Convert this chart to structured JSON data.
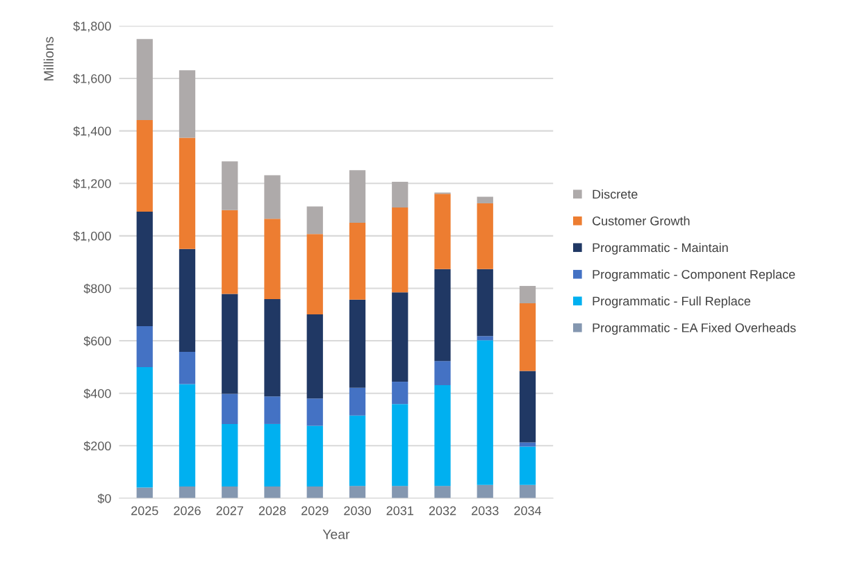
{
  "chart_data": {
    "type": "bar",
    "stacked": true,
    "xlabel": "Year",
    "ylabel": "Millions",
    "categories": [
      "2025",
      "2026",
      "2027",
      "2028",
      "2029",
      "2030",
      "2031",
      "2032",
      "2033",
      "2034"
    ],
    "series": [
      {
        "name": "Programmatic - EA Fixed Overheads",
        "color": "#8497b0",
        "values": [
          41,
          45,
          45,
          45,
          45,
          47,
          47,
          47,
          51,
          51
        ]
      },
      {
        "name": "Programmatic - Full Replace",
        "color": "#00b0f0",
        "values": [
          459,
          390,
          238,
          238,
          231,
          268,
          312,
          384,
          551,
          146
        ]
      },
      {
        "name": "Programmatic - Component Replace",
        "color": "#4472c4",
        "values": [
          156,
          123,
          115,
          105,
          104,
          106,
          85,
          92,
          16,
          16
        ]
      },
      {
        "name": "Programmatic - Maintain",
        "color": "#203864",
        "values": [
          436,
          392,
          381,
          371,
          321,
          336,
          341,
          350,
          255,
          272
        ]
      },
      {
        "name": "Customer Growth",
        "color": "#ed7d31",
        "values": [
          349,
          424,
          319,
          306,
          306,
          293,
          323,
          287,
          251,
          258
        ]
      },
      {
        "name": "Discrete",
        "color": "#aeaaaa",
        "values": [
          309,
          257,
          186,
          166,
          105,
          200,
          98,
          5,
          25,
          66
        ]
      }
    ],
    "ylim": [
      0,
      1800
    ],
    "yticks": [
      {
        "value": 0,
        "label": "$0"
      },
      {
        "value": 200,
        "label": "$200"
      },
      {
        "value": 400,
        "label": "$400"
      },
      {
        "value": 600,
        "label": "$600"
      },
      {
        "value": 800,
        "label": "$800"
      },
      {
        "value": 1000,
        "label": "$1,000"
      },
      {
        "value": 1200,
        "label": "$1,200"
      },
      {
        "value": 1400,
        "label": "$1,400"
      },
      {
        "value": 1600,
        "label": "$1,600"
      },
      {
        "value": 1800,
        "label": "$1,800"
      }
    ],
    "grid": "y",
    "legend": "right"
  }
}
